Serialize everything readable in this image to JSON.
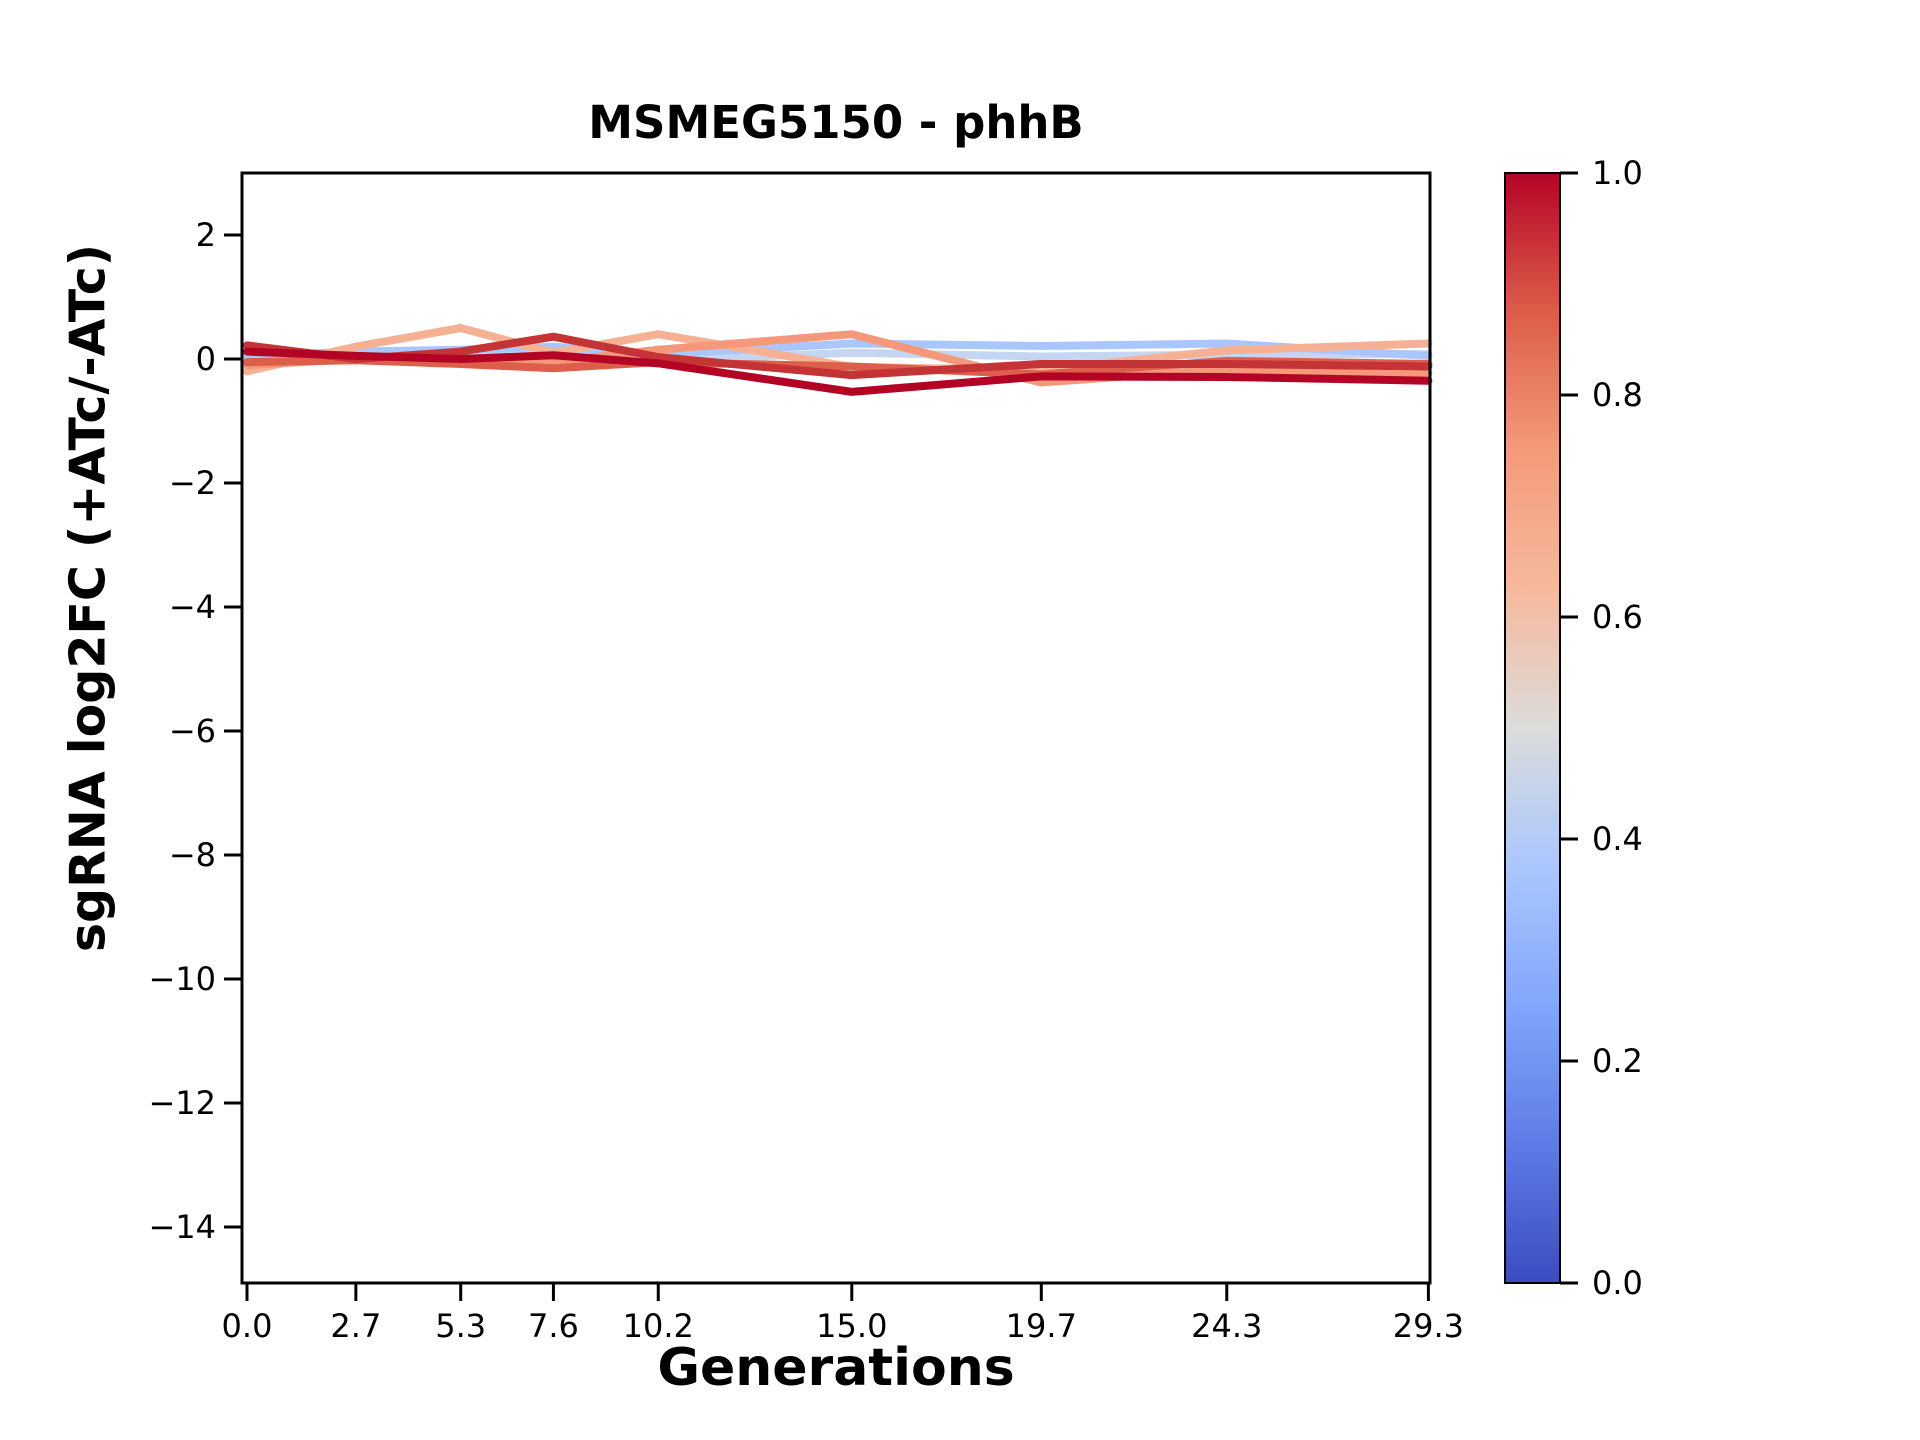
{
  "figure": {
    "background": "#ffffff",
    "axis_color": "#000000"
  },
  "chart_data": {
    "type": "line",
    "title": "MSMEG5150 - phhB",
    "xlabel": "Generations",
    "ylabel": "sgRNA log2FC (+ATc/-ATc)",
    "x": [
      0.0,
      2.7,
      5.3,
      7.6,
      10.2,
      15.0,
      19.7,
      24.3,
      29.3
    ],
    "xtick_labels": [
      "0.0",
      "2.7",
      "5.3",
      "7.6",
      "10.2",
      "15.0",
      "19.7",
      "24.3",
      "29.3"
    ],
    "yticks": [
      2,
      0,
      -2,
      -4,
      -6,
      -8,
      -10,
      -12,
      -14
    ],
    "ytick_labels": [
      "2",
      "0",
      "−2",
      "−4",
      "−6",
      "−8",
      "−10",
      "−12",
      "−14"
    ],
    "xlim": [
      -0.12,
      29.35
    ],
    "ylim": [
      -14.9,
      3.0
    ],
    "grid": false,
    "line_width": 8,
    "series": [
      {
        "color": "#c5d6f2",
        "values": [
          0.0,
          0.05,
          0.1,
          0.12,
          -0.02,
          0.1,
          0.04,
          0.07,
          0.08
        ]
      },
      {
        "color": "#aac7fd",
        "values": [
          0.05,
          0.12,
          0.15,
          0.2,
          0.08,
          0.25,
          0.21,
          0.25,
          0.05
        ]
      },
      {
        "color": "#f6b194",
        "values": [
          -0.2,
          0.2,
          0.5,
          0.1,
          0.4,
          -0.13,
          -0.18,
          0.14,
          0.25
        ]
      },
      {
        "color": "#f4977a",
        "values": [
          -0.1,
          0.0,
          -0.05,
          -0.05,
          0.15,
          0.4,
          -0.38,
          -0.16,
          -0.23
        ]
      },
      {
        "color": "#dd5f4b",
        "values": [
          -0.05,
          -0.02,
          -0.08,
          -0.15,
          -0.05,
          -0.12,
          -0.25,
          -0.03,
          -0.08
        ]
      },
      {
        "color": "#c43336",
        "values": [
          0.22,
          0.0,
          0.12,
          0.36,
          0.03,
          -0.26,
          -0.08,
          -0.08,
          -0.12
        ]
      },
      {
        "color": "#b40426",
        "values": [
          0.12,
          0.05,
          0.0,
          0.06,
          -0.07,
          -0.53,
          -0.28,
          -0.29,
          -0.35
        ]
      }
    ],
    "colorbar": {
      "range": [
        0.0,
        1.0
      ],
      "ticks": [
        1.0,
        0.8,
        0.6,
        0.4,
        0.2,
        0.0
      ],
      "tick_labels": [
        "1.0",
        "0.8",
        "0.6",
        "0.4",
        "0.2",
        "0.0"
      ],
      "colormap": "coolwarm",
      "gradient": [
        {
          "pos": 0.0,
          "color": "#3b4cc0"
        },
        {
          "pos": 0.125,
          "color": "#5d7ce6"
        },
        {
          "pos": 0.25,
          "color": "#82a6fb"
        },
        {
          "pos": 0.375,
          "color": "#aac7fd"
        },
        {
          "pos": 0.5,
          "color": "#dcdcdb"
        },
        {
          "pos": 0.625,
          "color": "#f7b99c"
        },
        {
          "pos": 0.75,
          "color": "#f49a7b"
        },
        {
          "pos": 0.875,
          "color": "#dc5d4a"
        },
        {
          "pos": 1.0,
          "color": "#b40426"
        }
      ]
    }
  }
}
